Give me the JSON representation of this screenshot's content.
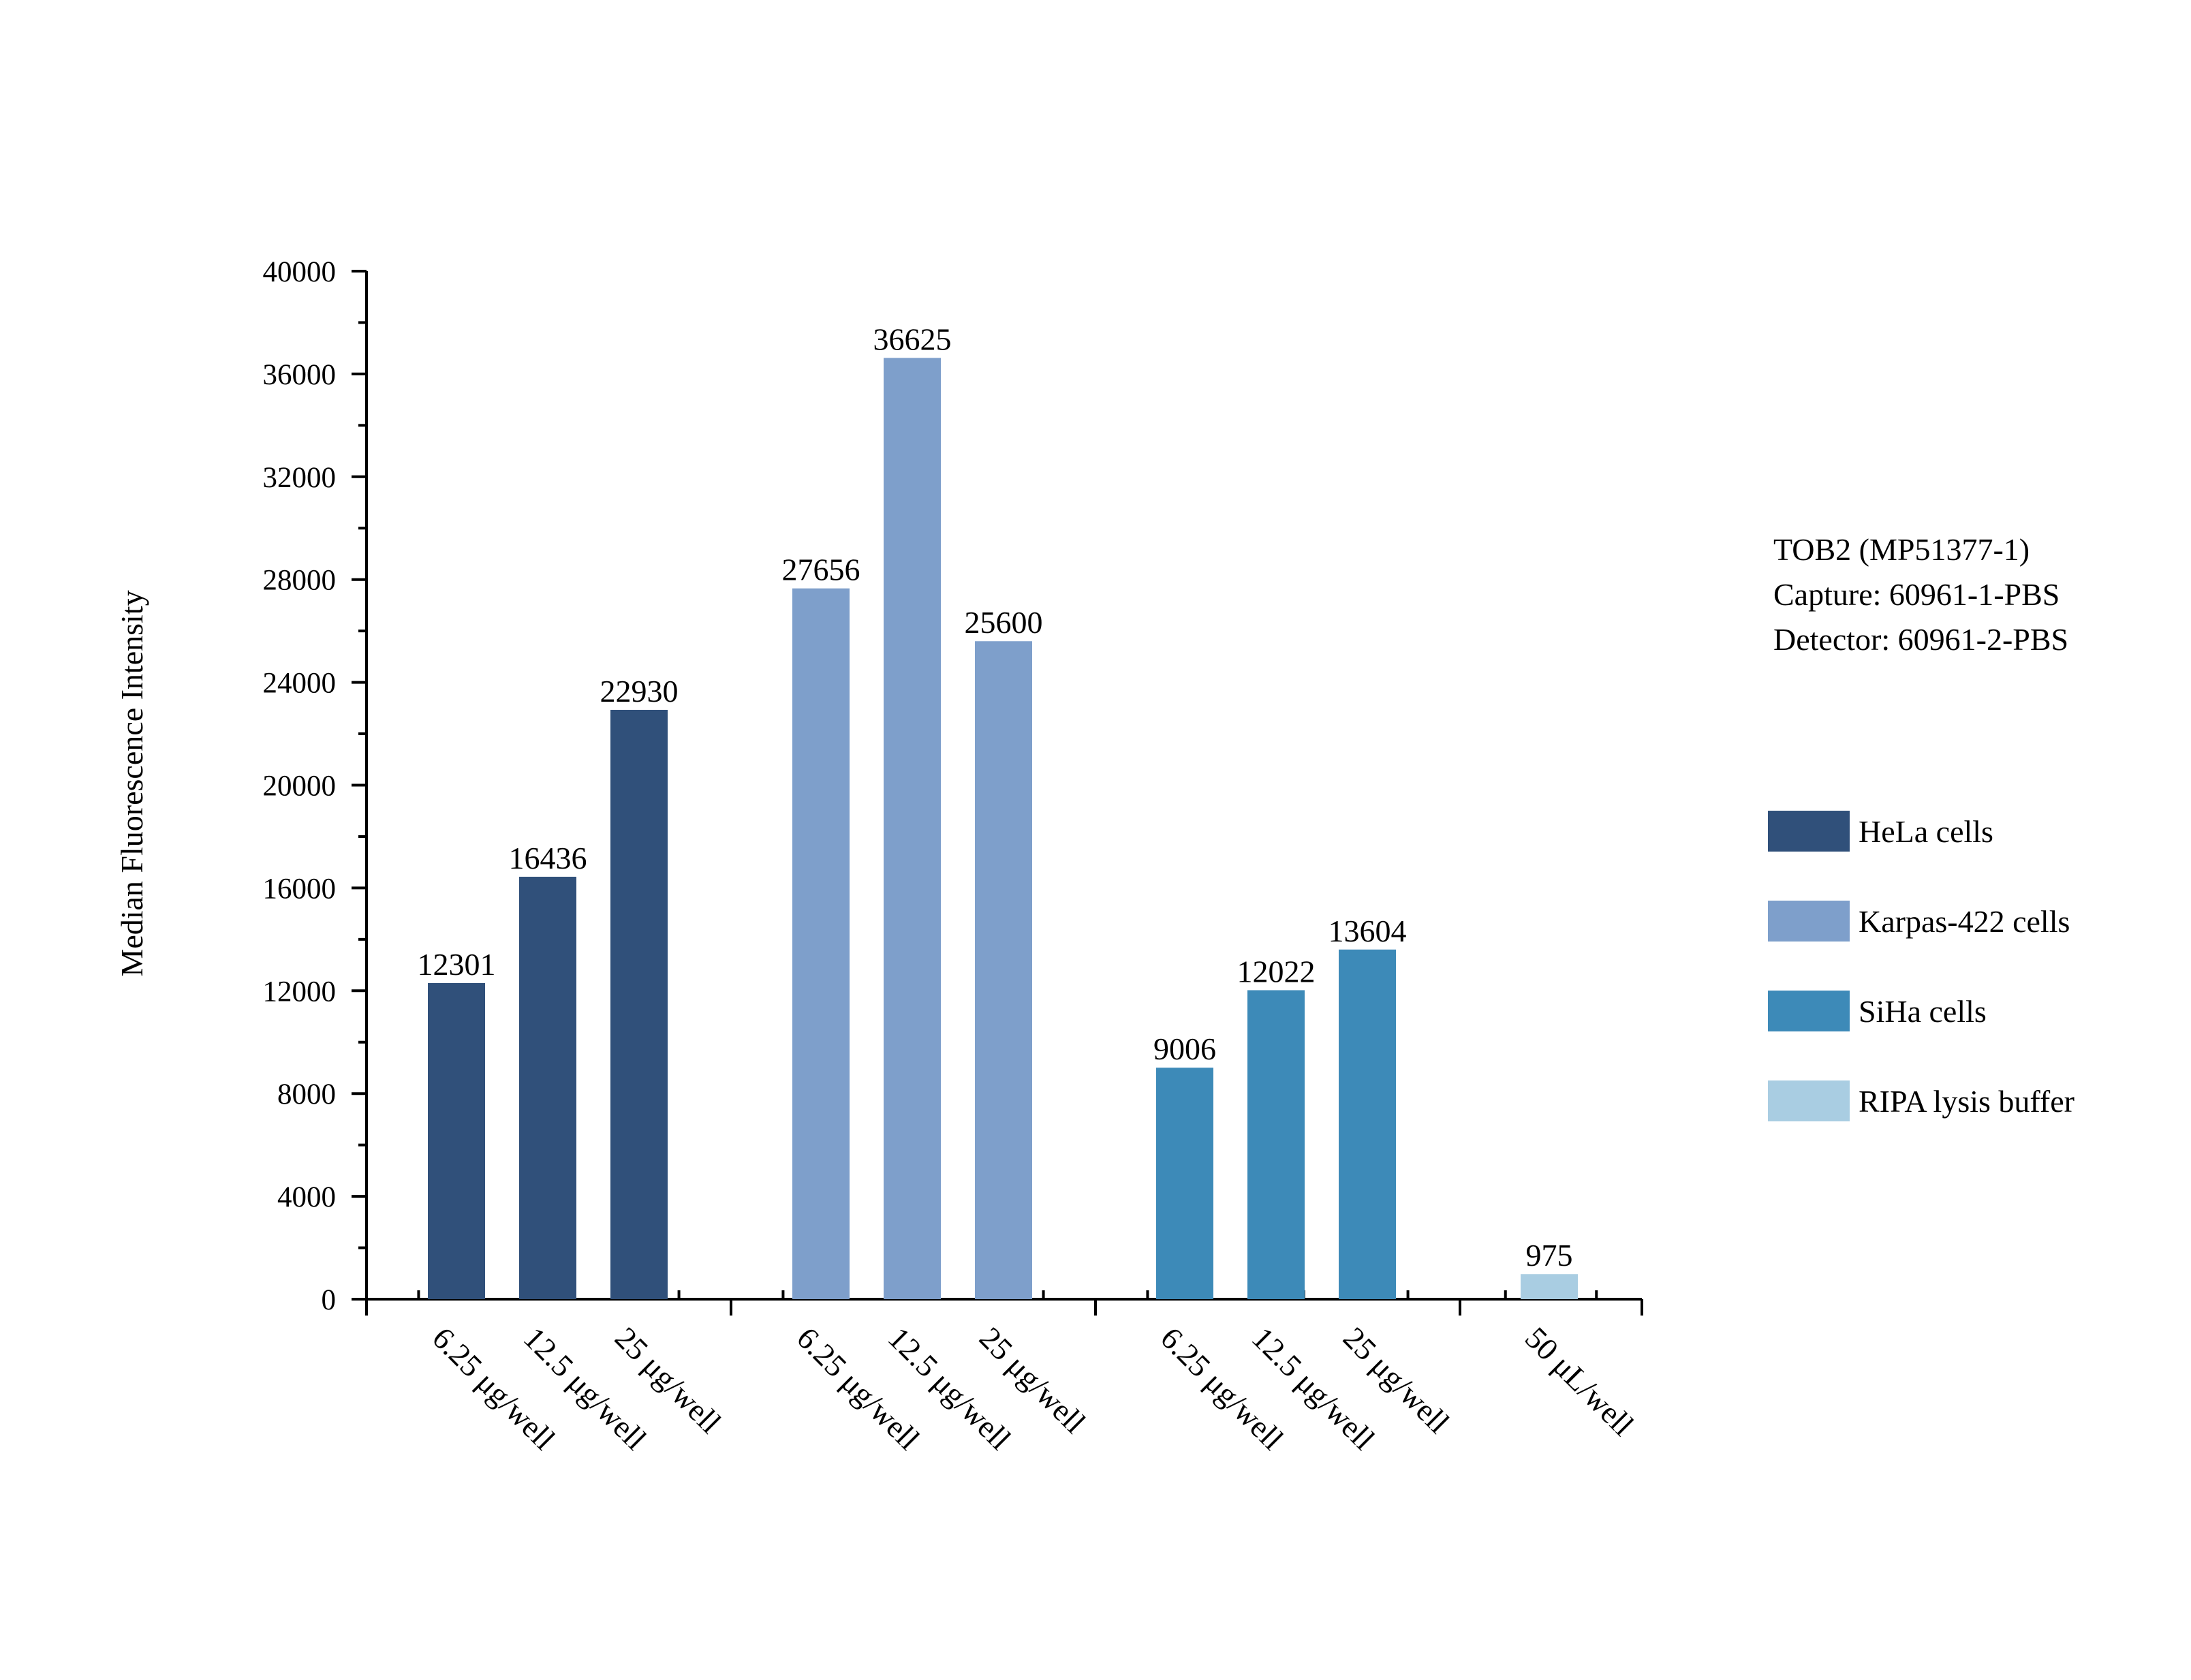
{
  "chart_data": {
    "type": "bar",
    "ylabel": "Median Fluorescence Intensity",
    "xlabel": "",
    "ylim": [
      0,
      40000
    ],
    "y_ticks": [
      0,
      4000,
      8000,
      12000,
      16000,
      20000,
      24000,
      28000,
      32000,
      36000,
      40000
    ],
    "grid": false,
    "legend_position": "right",
    "info_lines": [
      "TOB2 (MP51377-1)",
      "Capture: 60961-1-PBS",
      "Detector: 60961-2-PBS"
    ],
    "series": [
      {
        "name": "HeLa cells",
        "color": "#30507A",
        "categories": [
          "6.25 μg/well",
          "12.5 μg/well",
          "25 μg/well"
        ],
        "values": [
          12301,
          16436,
          22930
        ]
      },
      {
        "name": "Karpas-422 cells",
        "color": "#7E9FCB",
        "categories": [
          "6.25 μg/well",
          "12.5 μg/well",
          "25 μg/well"
        ],
        "values": [
          27656,
          36625,
          25600
        ]
      },
      {
        "name": "SiHa cells",
        "color": "#3D8AB8",
        "categories": [
          "6.25 μg/well",
          "12.5 μg/well",
          "25 μg/well"
        ],
        "values": [
          9006,
          12022,
          13604
        ]
      },
      {
        "name": "RIPA lysis buffer",
        "color": "#A9CDE2",
        "categories": [
          "50 μL/well"
        ],
        "values": [
          975
        ]
      }
    ]
  }
}
